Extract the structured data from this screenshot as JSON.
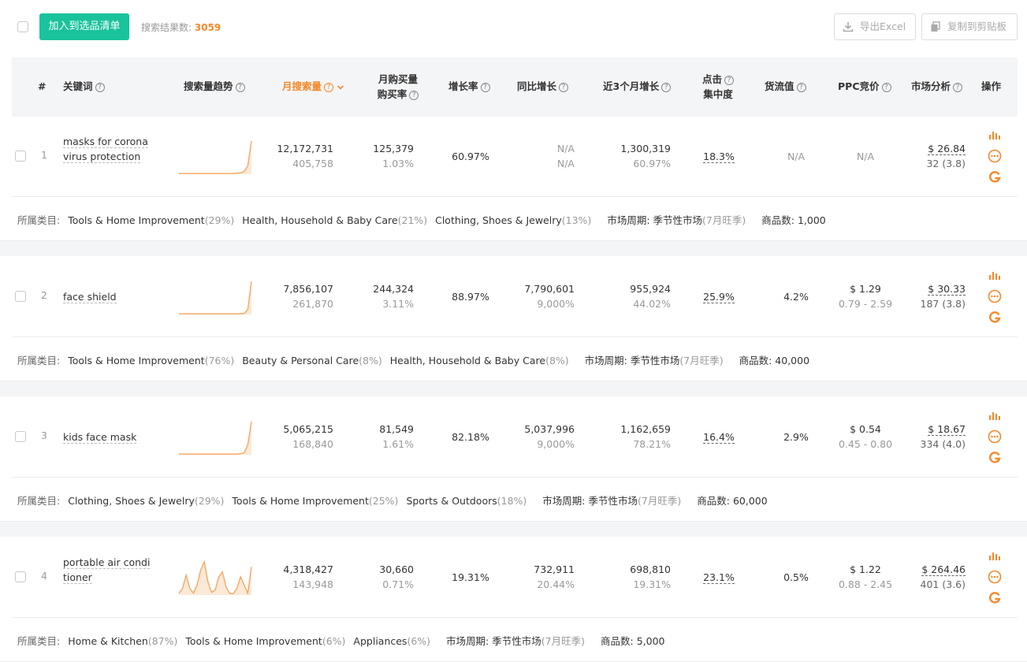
{
  "toolbar": {
    "add_button": "加入到选品清单",
    "search_label": "搜索结果数:",
    "search_count": "3059",
    "export_excel": "导出Excel",
    "copy_clipboard": "复制到剪贴板"
  },
  "header": {
    "index": "#",
    "keyword": "关键词",
    "trend": "搜索量趋势",
    "monthly_search": "月搜索量",
    "monthly_purchase_1": "月购买量",
    "monthly_purchase_2": "购买率",
    "growth": "增长率",
    "yoy": "同比增长",
    "recent3": "近3个月增长",
    "click_1": "点击",
    "click_2": "集中度",
    "value": "货流值",
    "ppc": "PPC竞价",
    "market": "市场分析",
    "action": "操作"
  },
  "category_label": "所属类目:",
  "cycle_label": "市场周期:",
  "count_label": "商品数:",
  "colors": {
    "accent": "#19c39c",
    "orange": "#f5882a"
  },
  "rows": [
    {
      "index": "1",
      "keyword_1": "masks for corona",
      "keyword_2": "virus protection",
      "search": "12,172,731",
      "search_sub": "405,758",
      "purchase": "125,379",
      "purchase_sub": "1.03%",
      "growth": "60.97%",
      "yoy": "N/A",
      "yoy_sub": "N/A",
      "recent3": "1,300,319",
      "recent3_sub": "60.97%",
      "click": "18.3%",
      "value": "N/A",
      "ppc": "N/A",
      "ppc_sub": "",
      "market": "$ 26.84",
      "market_sub": "32 (3.8)",
      "trend": [
        2,
        2,
        2,
        2,
        2,
        2,
        2,
        2,
        2,
        2,
        2,
        2,
        2,
        2,
        2,
        2,
        3,
        4,
        8,
        25,
        100
      ],
      "cats": [
        {
          "name": "Tools & Home Improvement",
          "pct": "(29%)"
        },
        {
          "name": "Health, Household & Baby Care",
          "pct": "(21%)"
        },
        {
          "name": "Clothing, Shoes & Jewelry",
          "pct": "(13%)"
        }
      ],
      "cycle": "季节性市场",
      "cycle_note": "(7月旺季)",
      "count": "1,000"
    },
    {
      "index": "2",
      "keyword_1": "face shield",
      "keyword_2": "",
      "search": "7,856,107",
      "search_sub": "261,870",
      "purchase": "244,324",
      "purchase_sub": "3.11%",
      "growth": "88.97%",
      "yoy": "7,790,601",
      "yoy_sub": "9,000%",
      "recent3": "955,924",
      "recent3_sub": "44.02%",
      "click": "25.9%",
      "value": "4.2%",
      "ppc": "$ 1.29",
      "ppc_sub": "0.79 - 2.59",
      "market": "$ 30.33",
      "market_sub": "187 (3.8)",
      "trend": [
        2,
        2,
        2,
        2,
        2,
        2,
        2,
        2,
        2,
        2,
        2,
        2,
        2,
        2,
        2,
        2,
        2,
        2,
        3,
        15,
        100
      ],
      "cats": [
        {
          "name": "Tools & Home Improvement",
          "pct": "(76%)"
        },
        {
          "name": "Beauty & Personal Care",
          "pct": "(8%)"
        },
        {
          "name": "Health, Household & Baby Care",
          "pct": "(8%)"
        }
      ],
      "cycle": "季节性市场",
      "cycle_note": "(7月旺季)",
      "count": "40,000"
    },
    {
      "index": "3",
      "keyword_1": "kids face mask",
      "keyword_2": "",
      "search": "5,065,215",
      "search_sub": "168,840",
      "purchase": "81,549",
      "purchase_sub": "1.61%",
      "growth": "82.18%",
      "yoy": "5,037,996",
      "yoy_sub": "9,000%",
      "recent3": "1,162,659",
      "recent3_sub": "78.21%",
      "click": "16.4%",
      "value": "2.9%",
      "ppc": "$ 0.54",
      "ppc_sub": "0.45 - 0.80",
      "market": "$ 18.67",
      "market_sub": "334 (4.0)",
      "trend": [
        2,
        2,
        2,
        2,
        2,
        2,
        2,
        2,
        2,
        2,
        2,
        2,
        2,
        2,
        2,
        2,
        2,
        3,
        6,
        30,
        100
      ],
      "cats": [
        {
          "name": "Clothing, Shoes & Jewelry",
          "pct": "(29%)"
        },
        {
          "name": "Tools & Home Improvement",
          "pct": "(25%)"
        },
        {
          "name": "Sports & Outdoors",
          "pct": "(18%)"
        }
      ],
      "cycle": "季节性市场",
      "cycle_note": "(7月旺季)",
      "count": "60,000"
    },
    {
      "index": "4",
      "keyword_1": "portable air condi",
      "keyword_2": "tioner",
      "search": "4,318,427",
      "search_sub": "143,948",
      "purchase": "30,660",
      "purchase_sub": "0.71%",
      "growth": "19.31%",
      "yoy": "732,911",
      "yoy_sub": "20.44%",
      "recent3": "698,810",
      "recent3_sub": "19.31%",
      "click": "23.1%",
      "value": "0.5%",
      "ppc": "$ 1.22",
      "ppc_sub": "0.88 - 2.45",
      "market": "$ 264.46",
      "market_sub": "401 (3.6)",
      "trend": [
        5,
        20,
        60,
        20,
        6,
        30,
        75,
        100,
        40,
        8,
        15,
        55,
        70,
        25,
        5,
        4,
        20,
        55,
        30,
        5,
        85
      ],
      "cats": [
        {
          "name": "Home & Kitchen",
          "pct": "(87%)"
        },
        {
          "name": "Tools & Home Improvement",
          "pct": "(6%)"
        },
        {
          "name": "Appliances",
          "pct": "(6%)"
        }
      ],
      "cycle": "季节性市场",
      "cycle_note": "(7月旺季)",
      "count": "5,000"
    }
  ]
}
